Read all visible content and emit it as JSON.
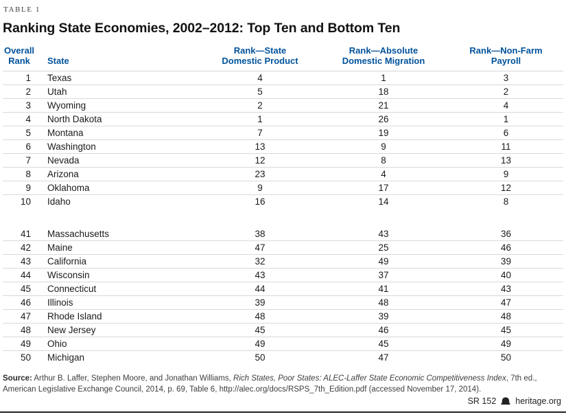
{
  "table_label": "TABLE 1",
  "title": "Ranking State Economies, 2002–2012: Top Ten and Bottom Ten",
  "colors": {
    "header_blue": "#00529b",
    "row_line": "#d9d9d9",
    "body_text": "#1a1a1a",
    "bottom_rule": "#222222"
  },
  "columns": [
    {
      "id": "overall-rank",
      "label": "Overall Rank",
      "lines": [
        "Overall",
        "Rank"
      ]
    },
    {
      "id": "state",
      "label": "State",
      "lines": [
        "State"
      ]
    },
    {
      "id": "sdp-rank",
      "label": "Rank—State Domestic Product",
      "lines": [
        "Rank—State",
        "Domestic Product"
      ]
    },
    {
      "id": "migration-rank",
      "label": "Rank—Absolute Domestic Migration",
      "lines": [
        "Rank—Absolute",
        "Domestic Migration"
      ]
    },
    {
      "id": "payroll-rank",
      "label": "Rank—Non-Farm Payroll",
      "lines": [
        "Rank—Non-Farm",
        "Payroll"
      ]
    }
  ],
  "top_ten": [
    {
      "overall_rank": "1",
      "state": "Texas",
      "sdp_rank": "4",
      "migration_rank": "1",
      "payroll_rank": "3"
    },
    {
      "overall_rank": "2",
      "state": "Utah",
      "sdp_rank": "5",
      "migration_rank": "18",
      "payroll_rank": "2"
    },
    {
      "overall_rank": "3",
      "state": "Wyoming",
      "sdp_rank": "2",
      "migration_rank": "21",
      "payroll_rank": "4"
    },
    {
      "overall_rank": "4",
      "state": "North Dakota",
      "sdp_rank": "1",
      "migration_rank": "26",
      "payroll_rank": "1"
    },
    {
      "overall_rank": "5",
      "state": "Montana",
      "sdp_rank": "7",
      "migration_rank": "19",
      "payroll_rank": "6"
    },
    {
      "overall_rank": "6",
      "state": "Washington",
      "sdp_rank": "13",
      "migration_rank": "9",
      "payroll_rank": "11"
    },
    {
      "overall_rank": "7",
      "state": "Nevada",
      "sdp_rank": "12",
      "migration_rank": "8",
      "payroll_rank": "13"
    },
    {
      "overall_rank": "8",
      "state": "Arizona",
      "sdp_rank": "23",
      "migration_rank": "4",
      "payroll_rank": "9"
    },
    {
      "overall_rank": "9",
      "state": "Oklahoma",
      "sdp_rank": "9",
      "migration_rank": "17",
      "payroll_rank": "12"
    },
    {
      "overall_rank": "10",
      "state": "Idaho",
      "sdp_rank": "16",
      "migration_rank": "14",
      "payroll_rank": "8"
    }
  ],
  "bottom_ten": [
    {
      "overall_rank": "41",
      "state": "Massachusetts",
      "sdp_rank": "38",
      "migration_rank": "43",
      "payroll_rank": "36"
    },
    {
      "overall_rank": "42",
      "state": "Maine",
      "sdp_rank": "47",
      "migration_rank": "25",
      "payroll_rank": "46"
    },
    {
      "overall_rank": "43",
      "state": "California",
      "sdp_rank": "32",
      "migration_rank": "49",
      "payroll_rank": "39"
    },
    {
      "overall_rank": "44",
      "state": "Wisconsin",
      "sdp_rank": "43",
      "migration_rank": "37",
      "payroll_rank": "40"
    },
    {
      "overall_rank": "45",
      "state": "Connecticut",
      "sdp_rank": "44",
      "migration_rank": "41",
      "payroll_rank": "43"
    },
    {
      "overall_rank": "46",
      "state": "Illinois",
      "sdp_rank": "39",
      "migration_rank": "48",
      "payroll_rank": "47"
    },
    {
      "overall_rank": "47",
      "state": "Rhode Island",
      "sdp_rank": "48",
      "migration_rank": "39",
      "payroll_rank": "48"
    },
    {
      "overall_rank": "48",
      "state": "New Jersey",
      "sdp_rank": "45",
      "migration_rank": "46",
      "payroll_rank": "45"
    },
    {
      "overall_rank": "49",
      "state": "Ohio",
      "sdp_rank": "49",
      "migration_rank": "45",
      "payroll_rank": "49"
    },
    {
      "overall_rank": "50",
      "state": "Michigan",
      "sdp_rank": "50",
      "migration_rank": "47",
      "payroll_rank": "50"
    }
  ],
  "source": {
    "label": "Source:",
    "pre": " Arthur B. Laffer, Stephen Moore, and Jonathan Williams, ",
    "italic": "Rich States, Poor States: ALEC-Laffer State Economic Competitiveness Index",
    "post": ", 7th ed., American Legislative Exchange Council, 2014, p. 69, Table 6, http://alec.org/docs/RSPS_7th_Edition.pdf (accessed November 17, 2014)."
  },
  "footer": {
    "doc_id": "SR 152",
    "site": "heritage.org"
  }
}
